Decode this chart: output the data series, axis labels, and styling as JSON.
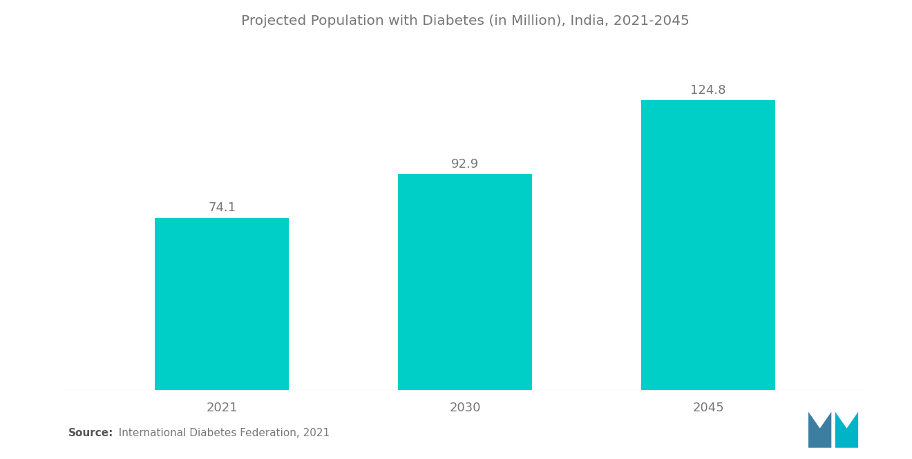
{
  "title": "Projected Population with Diabetes (in Million), India, 2021-2045",
  "categories": [
    "2021",
    "2030",
    "2045"
  ],
  "values": [
    74.1,
    92.9,
    124.8
  ],
  "bar_color": "#00CFC8",
  "bar_width": 0.55,
  "value_labels": [
    "74.1",
    "92.9",
    "124.8"
  ],
  "source_bold": "Source:",
  "source_rest": "  International Diabetes Federation, 2021",
  "title_fontsize": 14.5,
  "label_fontsize": 13,
  "tick_fontsize": 13,
  "source_fontsize": 11,
  "background_color": "#ffffff",
  "ylim": [
    0,
    148
  ],
  "x_positions": [
    0,
    1,
    2
  ],
  "label_color": "#777777",
  "tick_color": "#777777"
}
